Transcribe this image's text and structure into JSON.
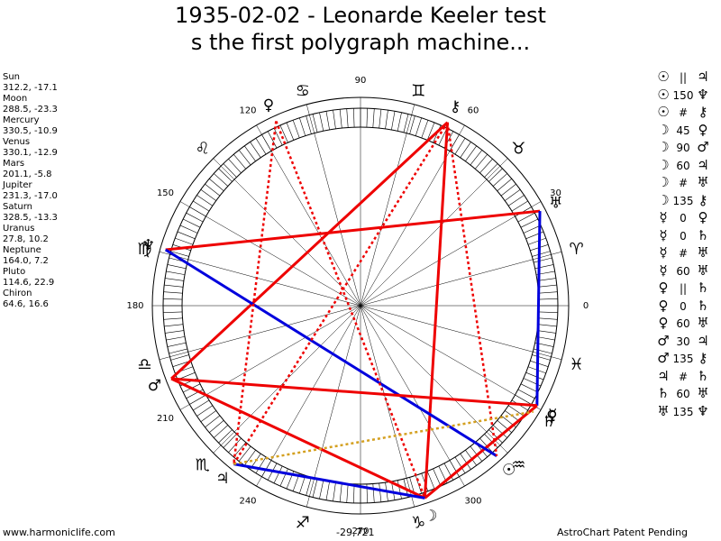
{
  "title": {
    "line1": "1935-02-02 - Leonarde Keeler test",
    "line2": "s the first polygraph machine..."
  },
  "planets": [
    {
      "name": "Sun",
      "coords": "312.2, -17.1",
      "lon": 312.2,
      "glyph": "☉",
      "color": "#000000"
    },
    {
      "name": "Moon",
      "coords": "288.5, -23.3",
      "lon": 288.5,
      "glyph": "☽",
      "color": "#000000"
    },
    {
      "name": "Mercury",
      "coords": "330.5, -10.9",
      "lon": 330.5,
      "glyph": "☿",
      "color": "#000000"
    },
    {
      "name": "Venus",
      "coords": "330.1, -12.9",
      "lon": 330.1,
      "glyph": "♀",
      "color": "#000000"
    },
    {
      "name": "Mars",
      "coords": "201.1, -5.8",
      "lon": 201.1,
      "glyph": "♂",
      "color": "#000000"
    },
    {
      "name": "Jupiter",
      "coords": "231.3, -17.0",
      "lon": 231.3,
      "glyph": "♃",
      "color": "#000000"
    },
    {
      "name": "Saturn",
      "coords": "328.5, -13.3",
      "lon": 328.5,
      "glyph": "♄",
      "color": "#000000"
    },
    {
      "name": "Uranus",
      "coords": "27.8, 10.2",
      "lon": 27.8,
      "glyph": "♅",
      "color": "#000000"
    },
    {
      "name": "Neptune",
      "coords": "164.0, 7.2",
      "lon": 164.0,
      "glyph": "♆",
      "color": "#000000"
    },
    {
      "name": "Pluto",
      "coords": "114.6, 22.9",
      "lon": 114.6,
      "glyph": "♀",
      "color": "#000000"
    },
    {
      "name": "Chiron",
      "coords": "64.6, 16.6",
      "lon": 64.6,
      "glyph": "⚷",
      "color": "#000000"
    }
  ],
  "signs": [
    {
      "glyph": "♈",
      "lon": 15
    },
    {
      "glyph": "♉",
      "lon": 45
    },
    {
      "glyph": "♊",
      "lon": 75
    },
    {
      "glyph": "♋",
      "lon": 105
    },
    {
      "glyph": "♌",
      "lon": 135
    },
    {
      "glyph": "♍",
      "lon": 165
    },
    {
      "glyph": "♎",
      "lon": 195
    },
    {
      "glyph": "♏",
      "lon": 225
    },
    {
      "glyph": "♐",
      "lon": 255
    },
    {
      "glyph": "♑",
      "lon": 285
    },
    {
      "glyph": "♒",
      "lon": 315
    },
    {
      "glyph": "♓",
      "lon": 345
    }
  ],
  "degree_labels": [
    {
      "text": "0",
      "lon": 0
    },
    {
      "text": "30",
      "lon": 30
    },
    {
      "text": "60",
      "lon": 60
    },
    {
      "text": "90",
      "lon": 90
    },
    {
      "text": "120",
      "lon": 120
    },
    {
      "text": "150",
      "lon": 150
    },
    {
      "text": "180",
      "lon": 180
    },
    {
      "text": "210",
      "lon": 210
    },
    {
      "text": "240",
      "lon": 240
    },
    {
      "text": "270",
      "lon": 270
    },
    {
      "text": "300",
      "lon": 300
    }
  ],
  "aspect_lines": [
    {
      "from": 27.8,
      "to": 164.0,
      "color": "#ee0000",
      "style": "solid"
    },
    {
      "from": 64.6,
      "to": 201.1,
      "color": "#ee0000",
      "style": "solid"
    },
    {
      "from": 64.6,
      "to": 288.5,
      "color": "#ee0000",
      "style": "solid"
    },
    {
      "from": 201.1,
      "to": 288.5,
      "color": "#ee0000",
      "style": "solid"
    },
    {
      "from": 288.5,
      "to": 330.5,
      "color": "#ee0000",
      "style": "solid"
    },
    {
      "from": 27.8,
      "to": 330.5,
      "color": "#0000dd",
      "style": "solid"
    },
    {
      "from": 164.0,
      "to": 312.2,
      "color": "#0000dd",
      "style": "solid"
    },
    {
      "from": 231.3,
      "to": 288.5,
      "color": "#0000dd",
      "style": "solid"
    },
    {
      "from": 201.1,
      "to": 330.5,
      "color": "#ee0000",
      "style": "solid"
    },
    {
      "from": 114.6,
      "to": 231.3,
      "color": "#ee0000",
      "style": "dotted"
    },
    {
      "from": 64.6,
      "to": 231.3,
      "color": "#ee0000",
      "style": "dotted"
    },
    {
      "from": 114.6,
      "to": 288.5,
      "color": "#ee0000",
      "style": "dotted"
    },
    {
      "from": 64.6,
      "to": 312.2,
      "color": "#ee0000",
      "style": "dotted"
    },
    {
      "from": 231.3,
      "to": 328.5,
      "color": "#d4a020",
      "style": "dotted"
    }
  ],
  "aspects": [
    {
      "p1": "☉",
      "sym": "||",
      "p2": "♃"
    },
    {
      "p1": "☉",
      "sym": "150",
      "p2": "♆"
    },
    {
      "p1": "☉",
      "sym": "#",
      "p2": "⚷"
    },
    {
      "p1": "☽",
      "sym": "45",
      "p2": "♀"
    },
    {
      "p1": "☽",
      "sym": "90",
      "p2": "♂"
    },
    {
      "p1": "☽",
      "sym": "60",
      "p2": "♃"
    },
    {
      "p1": "☽",
      "sym": "#",
      "p2": "♅"
    },
    {
      "p1": "☽",
      "sym": "135",
      "p2": "⚷"
    },
    {
      "p1": "☿",
      "sym": "0",
      "p2": "♀"
    },
    {
      "p1": "☿",
      "sym": "0",
      "p2": "♄"
    },
    {
      "p1": "☿",
      "sym": "#",
      "p2": "♅"
    },
    {
      "p1": "☿",
      "sym": "60",
      "p2": "♅"
    },
    {
      "p1": "♀",
      "sym": "||",
      "p2": "♄"
    },
    {
      "p1": "♀",
      "sym": "0",
      "p2": "♄"
    },
    {
      "p1": "♀",
      "sym": "60",
      "p2": "♅"
    },
    {
      "p1": "♂",
      "sym": "30",
      "p2": "♃"
    },
    {
      "p1": "♂",
      "sym": "135",
      "p2": "⚷"
    },
    {
      "p1": "♃",
      "sym": "#",
      "p2": "♄"
    },
    {
      "p1": "♄",
      "sym": "60",
      "p2": "♅"
    },
    {
      "p1": "♅",
      "sym": "135",
      "p2": "♆"
    }
  ],
  "footer": {
    "site": "www.harmoniclife.com",
    "coord": "-29,721",
    "brand": "AstroChart Patent Pending"
  }
}
